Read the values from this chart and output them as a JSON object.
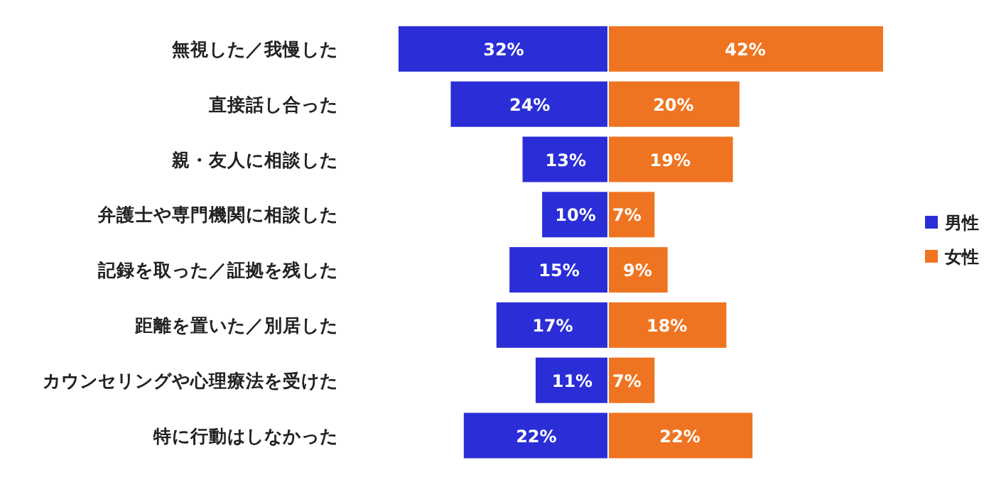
{
  "chart_data": [
    {
      "type": "bar",
      "orientation": "horizontal",
      "categories": [
        "無視した／我慢した",
        "直接話し合った",
        "親・友人に相談した",
        "弁護士や専門機関に相談した",
        "記録を取った／証拠を残した",
        "距離を置いた／別居した",
        "カウンセリングや心理療法を受けた",
        "特に行動はしなかった"
      ],
      "series": [
        {
          "name": "男性",
          "color": "#2b2ed6",
          "values": [
            32,
            24,
            13,
            10,
            15,
            17,
            11,
            22
          ],
          "value_labels": [
            "32%",
            "24%",
            "13%",
            "10%",
            "15%",
            "17%",
            "11%",
            "22%"
          ]
        }
      ],
      "legend": "right"
    },
    {
      "type": "bar",
      "orientation": "horizontal",
      "categories": [
        null,
        null,
        null,
        null,
        null,
        null,
        null,
        null
      ],
      "series": [
        {
          "name": "女性",
          "color": "#ef7421",
          "values": [
            42,
            20,
            19,
            7,
            9,
            18,
            7,
            22
          ],
          "value_labels": [
            "42%",
            "20%",
            "19%",
            "7%",
            "9%",
            "18%",
            "7%",
            "22%"
          ]
        }
      ],
      "legend": "right"
    }
  ]
}
